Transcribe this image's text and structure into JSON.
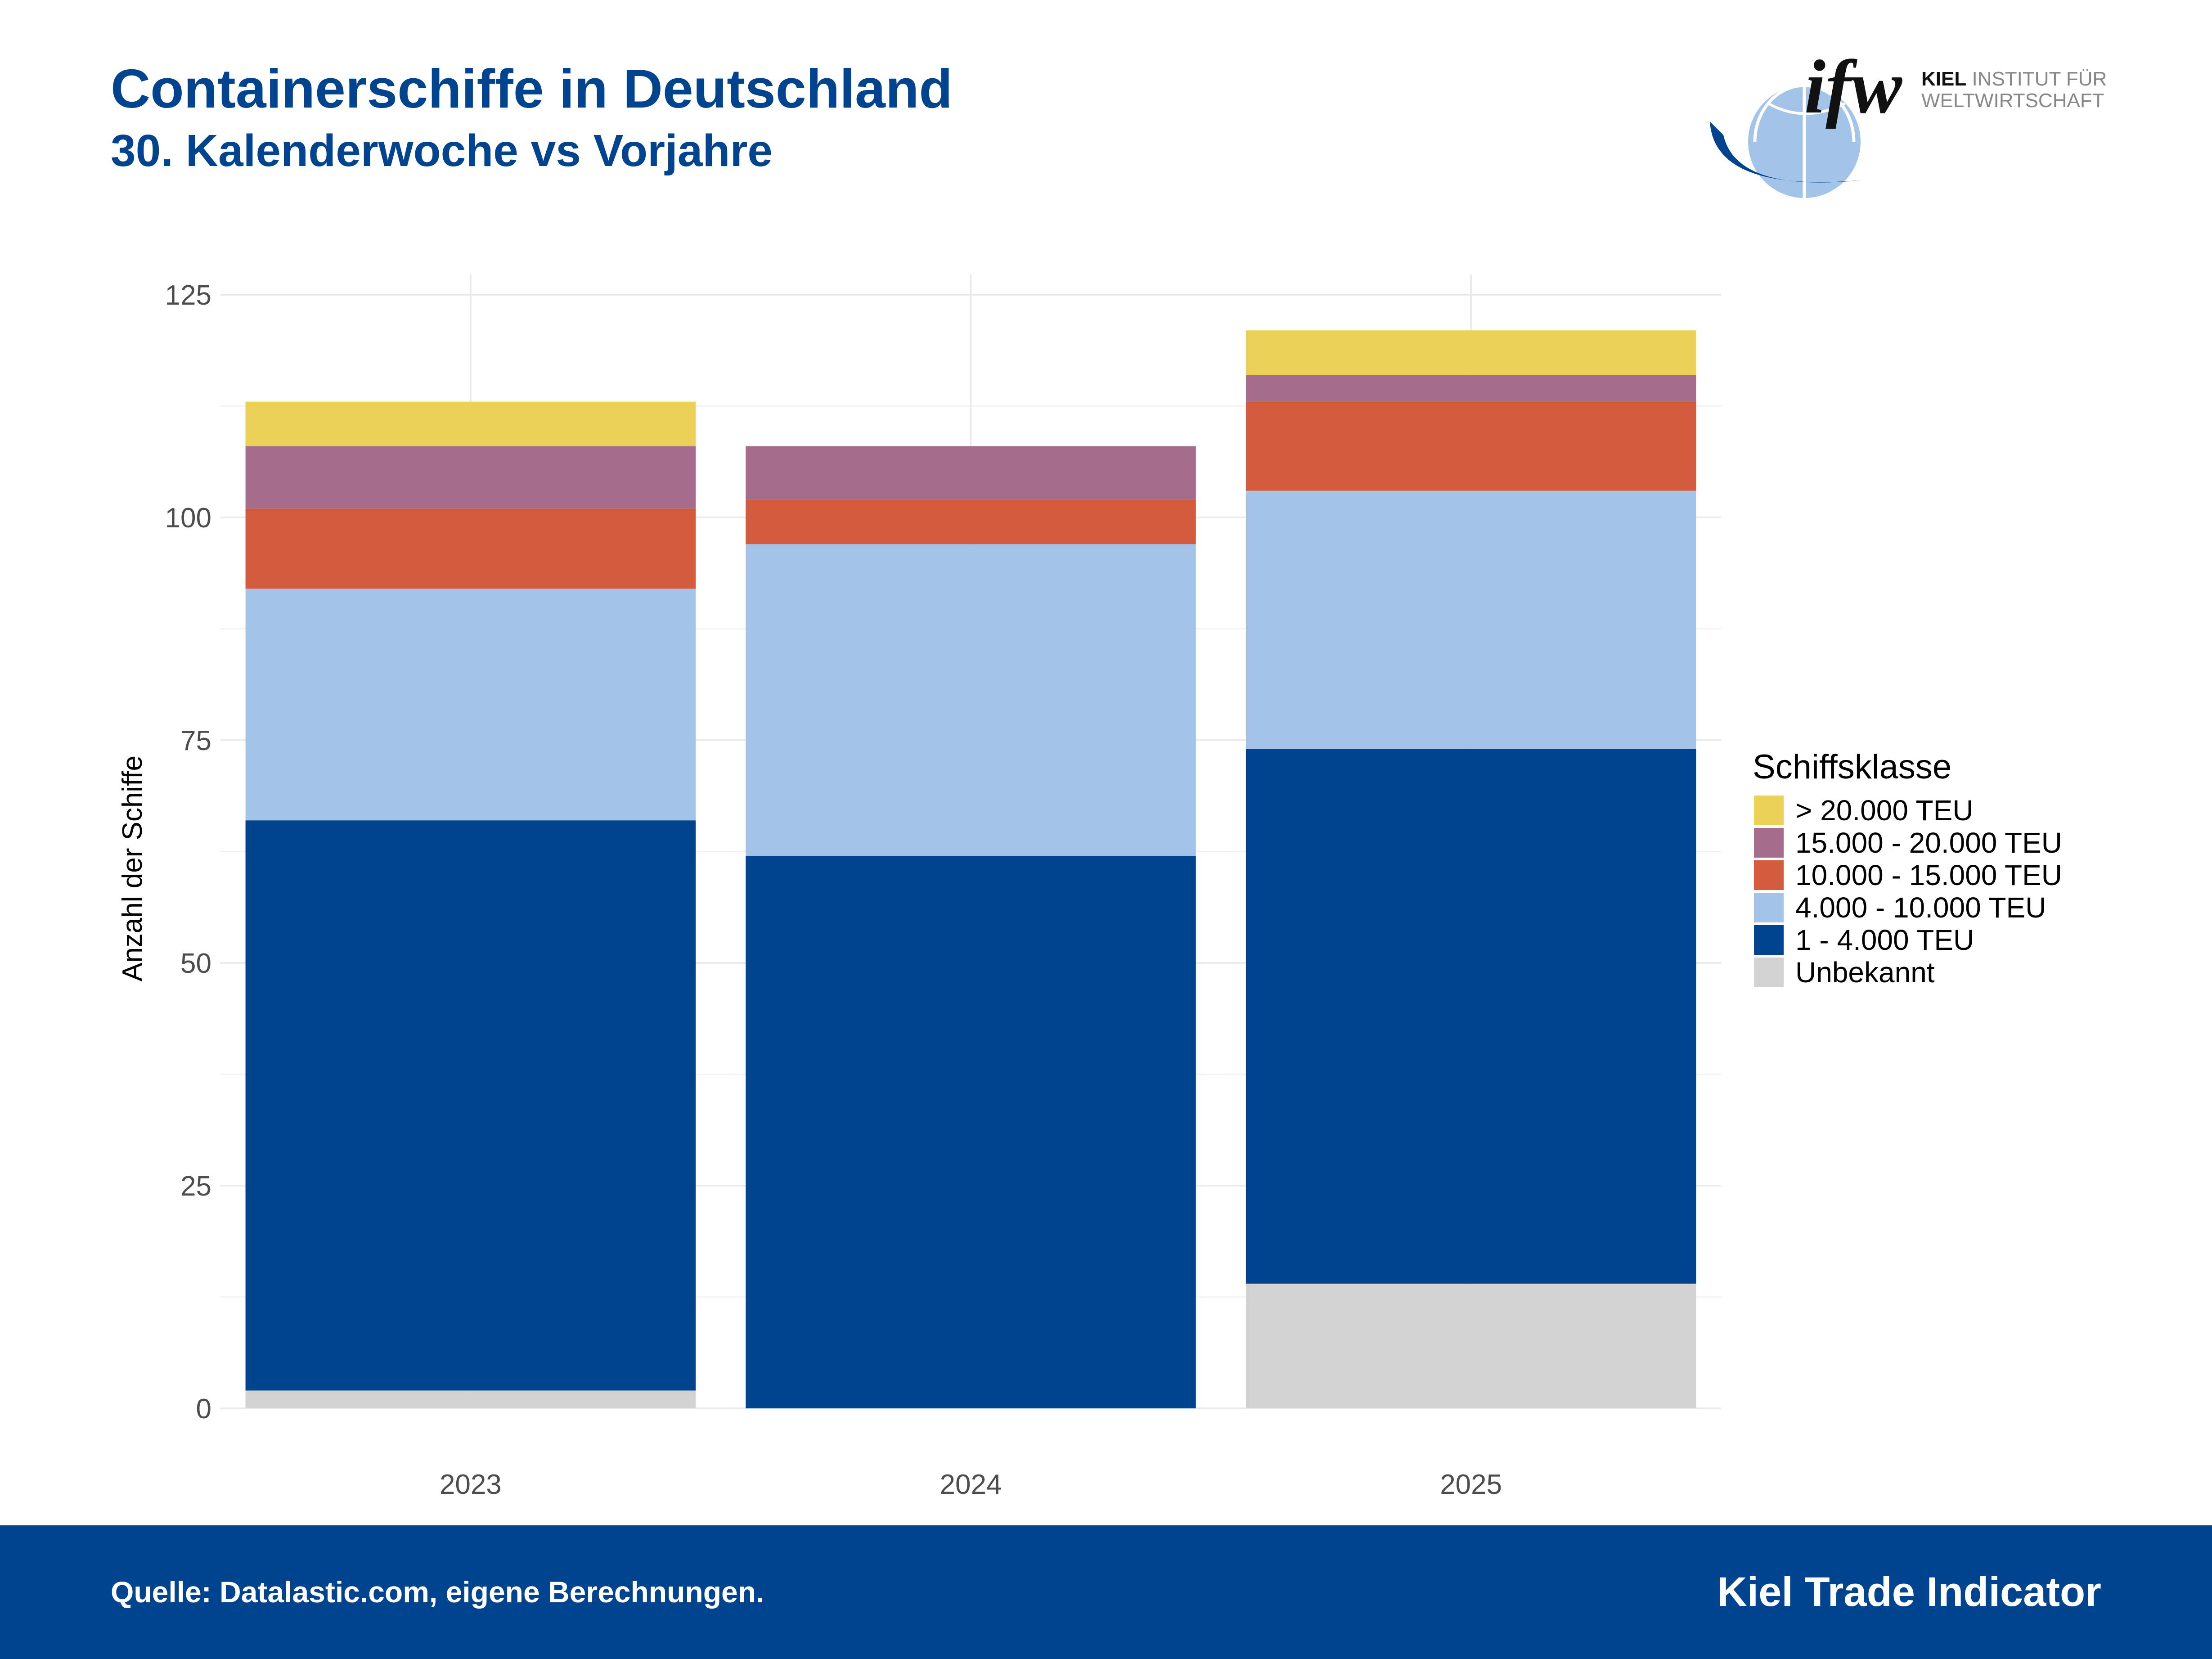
{
  "header": {
    "title": "Containerschiffe in Deutschland",
    "subtitle": "30. Kalenderwoche vs Vorjahre"
  },
  "logo": {
    "wordmark": "ifw",
    "line1": "KIEL INSTITUT FÜR",
    "line2": "WELTWIRTSCHAFT",
    "line1_bold": "KIEL",
    "line1_rest": " INSTITUT FÜR"
  },
  "footer": {
    "source": "Quelle: Datalastic.com, eigene Berechnungen.",
    "brand": "Kiel Trade Indicator"
  },
  "colors": {
    "brand_blue": "#00438f",
    "grid": "#ebebeb"
  },
  "chart_data": {
    "type": "bar",
    "stacked": true,
    "categories": [
      "2023",
      "2024",
      "2025"
    ],
    "ylabel": "Anzahl der Schiffe",
    "xlabel": "",
    "ylim": [
      0,
      125
    ],
    "yticks": [
      0,
      25,
      50,
      75,
      100,
      125
    ],
    "grid": true,
    "legend_title": "Schiffsklasse",
    "legend_position": "right",
    "series": [
      {
        "name": "Unbekannt",
        "color": "#d3d3d3",
        "values": [
          2,
          0,
          14
        ]
      },
      {
        "name": "1 - 4.000 TEU",
        "color": "#00438f",
        "values": [
          64,
          62,
          60
        ]
      },
      {
        "name": "4.000 - 10.000 TEU",
        "color": "#a3c4e8",
        "values": [
          26,
          35,
          29
        ]
      },
      {
        "name": "10.000 - 15.000 TEU",
        "color": "#d35b3d",
        "values": [
          9,
          5,
          10
        ]
      },
      {
        "name": "15.000 - 20.000 TEU",
        "color": "#a66c8c",
        "values": [
          7,
          6,
          3
        ]
      },
      {
        "name": "> 20.000 TEU",
        "color": "#ecd158",
        "values": [
          5,
          0,
          5
        ]
      }
    ]
  }
}
